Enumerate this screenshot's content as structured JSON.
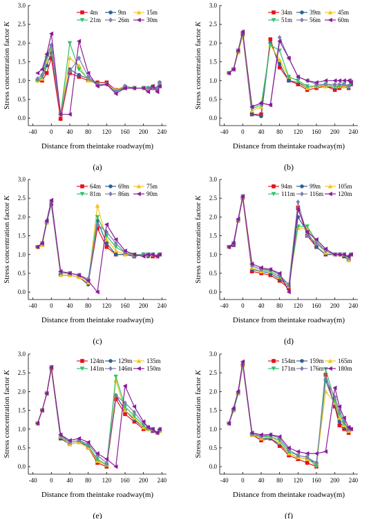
{
  "x_categories": [
    -30,
    -20,
    -10,
    0,
    20,
    40,
    60,
    80,
    100,
    120,
    140,
    160,
    180,
    200,
    210,
    220,
    230,
    235
  ],
  "chart_data": [
    {
      "type": "line",
      "panel_label": "(a)",
      "xlabel": "Distance from theintake roadway(m)",
      "ylabel": "Stress concentration factor K",
      "xlim": [
        -50,
        250
      ],
      "ylim": [
        -0.2,
        3.0
      ],
      "xticks": [
        -40,
        0,
        40,
        80,
        120,
        160,
        200,
        240
      ],
      "yticks": [
        0.0,
        0.5,
        1.0,
        1.5,
        2.0,
        2.5,
        3.0
      ],
      "series": [
        {
          "name": "4m",
          "color": "#e8101a",
          "marker": "square",
          "values": [
            1.0,
            1.0,
            1.2,
            1.6,
            -0.02,
            1.2,
            1.1,
            1.0,
            0.95,
            0.95,
            0.75,
            0.8,
            0.8,
            0.8,
            0.75,
            0.8,
            0.75,
            0.85
          ]
        },
        {
          "name": "9m",
          "color": "#2f5f9a",
          "marker": "circle",
          "values": [
            1.0,
            1.05,
            1.4,
            1.75,
            0.1,
            1.3,
            1.15,
            1.05,
            0.9,
            0.9,
            0.75,
            0.85,
            0.8,
            0.8,
            0.8,
            0.85,
            0.8,
            0.95
          ]
        },
        {
          "name": "15m",
          "color": "#f5c518",
          "marker": "triangle",
          "values": [
            1.0,
            1.05,
            1.55,
            1.85,
            0.1,
            1.6,
            1.4,
            1.0,
            0.9,
            0.9,
            0.75,
            0.85,
            0.8,
            0.8,
            0.75,
            0.85,
            0.75,
            0.9
          ]
        },
        {
          "name": "21m",
          "color": "#2ec46a",
          "marker": "triangle-down",
          "values": [
            1.0,
            1.1,
            1.6,
            1.9,
            0.1,
            2.0,
            1.3,
            1.05,
            0.9,
            0.9,
            0.7,
            0.8,
            0.8,
            0.8,
            0.8,
            0.8,
            0.75,
            0.9
          ]
        },
        {
          "name": "26m",
          "color": "#7a7fb0",
          "marker": "diamond",
          "values": [
            1.05,
            1.15,
            1.7,
            1.95,
            0.1,
            1.25,
            1.6,
            1.1,
            0.9,
            0.9,
            0.7,
            0.85,
            0.8,
            0.8,
            0.8,
            0.8,
            0.8,
            0.95
          ]
        },
        {
          "name": "30m",
          "color": "#8b1a9a",
          "marker": "triangle-left",
          "values": [
            1.2,
            1.3,
            1.7,
            2.25,
            0.1,
            0.1,
            2.05,
            1.2,
            0.85,
            0.9,
            0.65,
            0.8,
            0.8,
            0.8,
            0.7,
            0.85,
            0.7,
            0.85
          ]
        }
      ]
    },
    {
      "type": "line",
      "panel_label": "(b)",
      "xlabel": "Distance from theintake roadway(m)",
      "ylabel": "Stress concentration factor K",
      "xlim": [
        -50,
        250
      ],
      "ylim": [
        -0.2,
        3.0
      ],
      "xticks": [
        -40,
        0,
        40,
        80,
        120,
        160,
        200,
        240
      ],
      "yticks": [
        0.0,
        0.5,
        1.0,
        1.5,
        2.0,
        2.5,
        3.0
      ],
      "series": [
        {
          "name": "34m",
          "color": "#e8101a",
          "marker": "square",
          "values": [
            1.2,
            1.3,
            1.8,
            2.25,
            0.1,
            0.1,
            2.1,
            1.35,
            1.0,
            0.9,
            0.75,
            0.8,
            0.85,
            0.75,
            0.8,
            0.85,
            0.8,
            0.9
          ]
        },
        {
          "name": "39m",
          "color": "#2f5f9a",
          "marker": "circle",
          "values": [
            1.2,
            1.3,
            1.75,
            2.2,
            0.1,
            0.05,
            2.0,
            1.45,
            1.0,
            0.95,
            0.8,
            0.85,
            0.85,
            0.8,
            0.85,
            0.85,
            0.8,
            0.9
          ]
        },
        {
          "name": "45m",
          "color": "#f5c518",
          "marker": "triangle",
          "values": [
            1.2,
            1.3,
            1.75,
            2.2,
            0.2,
            0.3,
            1.95,
            1.55,
            1.1,
            1.0,
            0.8,
            0.85,
            0.85,
            0.85,
            0.85,
            0.85,
            0.85,
            0.95
          ]
        },
        {
          "name": "51m",
          "color": "#2ec46a",
          "marker": "triangle-down",
          "values": [
            1.2,
            1.3,
            1.8,
            2.25,
            0.25,
            0.35,
            1.95,
            1.8,
            1.1,
            1.0,
            0.85,
            0.85,
            0.9,
            0.85,
            0.85,
            0.9,
            0.85,
            0.95
          ]
        },
        {
          "name": "56m",
          "color": "#7a7fb0",
          "marker": "diamond",
          "values": [
            1.2,
            1.3,
            1.8,
            2.3,
            0.3,
            0.4,
            0.35,
            2.15,
            1.6,
            1.1,
            1.0,
            0.9,
            0.9,
            0.9,
            0.9,
            0.9,
            0.85,
            1.0
          ]
        },
        {
          "name": "60m",
          "color": "#8b1a9a",
          "marker": "triangle-left",
          "values": [
            1.2,
            1.3,
            1.8,
            2.3,
            0.3,
            0.4,
            0.35,
            2.05,
            1.6,
            1.1,
            1.0,
            0.95,
            1.0,
            1.0,
            1.0,
            1.0,
            1.0,
            0.95
          ]
        }
      ]
    },
    {
      "type": "line",
      "panel_label": "(c)",
      "xlabel": "Distance from theintake roadway(m)",
      "ylabel": "Stress concentration factor K",
      "xlim": [
        -50,
        250
      ],
      "ylim": [
        -0.2,
        3.0
      ],
      "xticks": [
        -40,
        0,
        40,
        80,
        120,
        160,
        200,
        240
      ],
      "yticks": [
        0.0,
        0.5,
        1.0,
        1.5,
        2.0,
        2.5,
        3.0
      ],
      "series": [
        {
          "name": "64m",
          "color": "#e8101a",
          "marker": "square",
          "values": [
            1.2,
            1.25,
            1.85,
            2.35,
            0.45,
            0.45,
            0.4,
            0.25,
            1.7,
            1.2,
            1.0,
            1.0,
            0.95,
            1.0,
            1.0,
            0.95,
            0.95,
            1.0
          ]
        },
        {
          "name": "69m",
          "color": "#2f5f9a",
          "marker": "circle",
          "values": [
            1.2,
            1.25,
            1.85,
            2.35,
            0.45,
            0.45,
            0.4,
            0.2,
            1.9,
            1.3,
            1.0,
            1.0,
            0.95,
            1.0,
            0.95,
            1.0,
            0.95,
            1.0
          ]
        },
        {
          "name": "75m",
          "color": "#f5c518",
          "marker": "triangle",
          "values": [
            1.2,
            1.25,
            1.85,
            2.4,
            0.45,
            0.45,
            0.4,
            0.25,
            2.3,
            1.4,
            1.1,
            1.0,
            1.0,
            1.0,
            1.0,
            1.0,
            0.95,
            1.0
          ]
        },
        {
          "name": "81m",
          "color": "#2ec46a",
          "marker": "triangle-down",
          "values": [
            1.2,
            1.3,
            1.85,
            2.4,
            0.5,
            0.5,
            0.45,
            0.3,
            2.0,
            1.5,
            1.2,
            1.05,
            1.0,
            1.0,
            1.0,
            1.0,
            0.95,
            1.0
          ]
        },
        {
          "name": "86m",
          "color": "#7a7fb0",
          "marker": "diamond",
          "values": [
            1.2,
            1.3,
            1.9,
            2.4,
            0.55,
            0.5,
            0.45,
            0.35,
            1.8,
            1.6,
            1.3,
            1.05,
            0.95,
            1.0,
            1.0,
            1.0,
            0.95,
            1.0
          ]
        },
        {
          "name": "90m",
          "color": "#8b1a9a",
          "marker": "triangle-left",
          "values": [
            1.2,
            1.3,
            1.9,
            2.45,
            0.55,
            0.5,
            0.45,
            0.3,
            0.0,
            1.8,
            1.4,
            1.1,
            1.0,
            0.95,
            1.0,
            1.0,
            0.95,
            1.0
          ]
        }
      ]
    },
    {
      "type": "line",
      "panel_label": "(d)",
      "xlabel": "Distance from theintake roadway(m)",
      "ylabel": "Stress concentration factor K",
      "xlim": [
        -50,
        250
      ],
      "ylim": [
        -0.2,
        3.0
      ],
      "xticks": [
        -40,
        0,
        40,
        80,
        120,
        160,
        200,
        240
      ],
      "yticks": [
        0.0,
        0.5,
        1.0,
        1.5,
        2.0,
        2.5,
        3.0
      ],
      "series": [
        {
          "name": "94m",
          "color": "#e8101a",
          "marker": "square",
          "values": [
            1.2,
            1.25,
            1.9,
            2.5,
            0.55,
            0.5,
            0.45,
            0.3,
            0.1,
            2.25,
            1.5,
            1.2,
            1.0,
            1.0,
            1.0,
            0.95,
            0.85,
            1.0
          ]
        },
        {
          "name": "99m",
          "color": "#2f5f9a",
          "marker": "circle",
          "values": [
            1.2,
            1.25,
            1.9,
            2.5,
            0.6,
            0.55,
            0.5,
            0.35,
            0.15,
            2.0,
            1.6,
            1.2,
            1.0,
            1.0,
            1.0,
            0.95,
            0.85,
            1.0
          ]
        },
        {
          "name": "105m",
          "color": "#f5c518",
          "marker": "triangle",
          "values": [
            1.2,
            1.3,
            1.9,
            2.5,
            0.65,
            0.55,
            0.55,
            0.4,
            0.15,
            1.7,
            1.7,
            1.3,
            1.05,
            1.0,
            1.0,
            1.0,
            0.85,
            1.0
          ]
        },
        {
          "name": "111m",
          "color": "#2ec46a",
          "marker": "triangle-down",
          "values": [
            1.2,
            1.3,
            1.9,
            2.55,
            0.7,
            0.6,
            0.55,
            0.4,
            0.2,
            1.75,
            1.75,
            1.35,
            1.1,
            1.0,
            1.0,
            1.0,
            0.9,
            1.0
          ]
        },
        {
          "name": "116m",
          "color": "#7a7fb0",
          "marker": "diamond",
          "values": [
            1.2,
            1.3,
            1.9,
            2.55,
            0.7,
            0.6,
            0.6,
            0.45,
            0.2,
            2.4,
            1.5,
            1.3,
            1.1,
            1.0,
            1.0,
            1.0,
            0.95,
            1.0
          ]
        },
        {
          "name": "120m",
          "color": "#8b1a9a",
          "marker": "triangle-left",
          "values": [
            1.2,
            1.3,
            1.95,
            2.55,
            0.75,
            0.65,
            0.6,
            0.5,
            0.0,
            2.2,
            1.6,
            1.4,
            1.15,
            1.0,
            1.0,
            1.0,
            0.95,
            1.0
          ]
        }
      ]
    },
    {
      "type": "line",
      "panel_label": "(e)",
      "xlabel": "Distance from theintake roadway(m)",
      "ylabel": "Stress concentration factor K",
      "xlim": [
        -50,
        250
      ],
      "ylim": [
        -0.2,
        3.0
      ],
      "xticks": [
        -40,
        0,
        40,
        80,
        120,
        160,
        200,
        240
      ],
      "yticks": [
        0.0,
        0.5,
        1.0,
        1.5,
        2.0,
        2.5,
        3.0
      ],
      "series": [
        {
          "name": "124m",
          "color": "#e8101a",
          "marker": "square",
          "values": [
            1.15,
            1.5,
            1.95,
            2.6,
            0.75,
            0.6,
            0.65,
            0.5,
            0.1,
            0.0,
            1.8,
            1.4,
            1.2,
            1.0,
            1.0,
            0.95,
            0.9,
            0.95
          ]
        },
        {
          "name": "129m",
          "color": "#2f5f9a",
          "marker": "circle",
          "values": [
            1.15,
            1.5,
            1.95,
            2.6,
            0.75,
            0.6,
            0.65,
            0.55,
            0.15,
            0.05,
            1.9,
            1.5,
            1.25,
            1.05,
            1.0,
            0.95,
            0.9,
            0.95
          ]
        },
        {
          "name": "135m",
          "color": "#f5c518",
          "marker": "triangle",
          "values": [
            1.15,
            1.5,
            1.95,
            2.6,
            0.8,
            0.6,
            0.65,
            0.5,
            0.15,
            0.05,
            2.3,
            1.5,
            1.3,
            1.05,
            1.0,
            1.0,
            0.9,
            0.95
          ]
        },
        {
          "name": "141m",
          "color": "#2ec46a",
          "marker": "triangle-down",
          "values": [
            1.15,
            1.5,
            1.95,
            2.65,
            0.8,
            0.65,
            0.7,
            0.55,
            0.2,
            0.05,
            2.4,
            1.6,
            1.35,
            1.1,
            1.0,
            1.0,
            0.9,
            0.95
          ]
        },
        {
          "name": "146m",
          "color": "#7a7fb0",
          "marker": "diamond",
          "values": [
            1.15,
            1.5,
            1.95,
            2.65,
            0.85,
            0.65,
            0.7,
            0.6,
            0.3,
            0.1,
            1.9,
            1.7,
            1.45,
            1.15,
            1.05,
            1.0,
            0.9,
            1.0
          ]
        },
        {
          "name": "150m",
          "color": "#8b1a9a",
          "marker": "triangle-left",
          "values": [
            1.15,
            1.5,
            1.95,
            2.65,
            0.85,
            0.7,
            0.75,
            0.65,
            0.35,
            0.2,
            0.0,
            2.15,
            1.6,
            1.2,
            1.05,
            1.0,
            0.9,
            1.0
          ]
        }
      ]
    },
    {
      "type": "line",
      "panel_label": "(f)",
      "xlabel": "Distance from theintake roadway(m)",
      "ylabel": "Stress concentration factor K",
      "xlim": [
        -50,
        250
      ],
      "ylim": [
        -0.2,
        3.0
      ],
      "xticks": [
        -40,
        0,
        40,
        80,
        120,
        160,
        200,
        240
      ],
      "yticks": [
        0.0,
        0.5,
        1.0,
        1.5,
        2.0,
        2.5,
        3.0
      ],
      "series": [
        {
          "name": "154m",
          "color": "#e8101a",
          "marker": "square",
          "values": [
            1.15,
            1.5,
            1.95,
            2.7,
            0.85,
            0.7,
            0.75,
            0.55,
            0.3,
            0.2,
            0.1,
            0.0,
            2.45,
            1.6,
            1.1,
            1.0,
            0.9,
            1.0
          ]
        },
        {
          "name": "159m",
          "color": "#2f5f9a",
          "marker": "circle",
          "values": [
            1.15,
            1.5,
            1.95,
            2.7,
            0.85,
            0.75,
            0.75,
            0.6,
            0.35,
            0.25,
            0.2,
            0.1,
            2.3,
            1.65,
            1.2,
            1.05,
            0.95,
            1.0
          ]
        },
        {
          "name": "165m",
          "color": "#f5c518",
          "marker": "triangle",
          "values": [
            1.15,
            1.5,
            1.95,
            2.7,
            0.85,
            0.75,
            0.8,
            0.65,
            0.35,
            0.25,
            0.2,
            0.05,
            2.0,
            1.7,
            1.3,
            1.1,
            0.95,
            1.0
          ]
        },
        {
          "name": "171m",
          "color": "#2ec46a",
          "marker": "triangle-down",
          "values": [
            1.15,
            1.5,
            1.95,
            2.75,
            0.85,
            0.8,
            0.8,
            0.7,
            0.4,
            0.3,
            0.25,
            0.0,
            2.6,
            1.75,
            1.4,
            1.15,
            1.0,
            1.0
          ]
        },
        {
          "name": "176m",
          "color": "#7a7fb0",
          "marker": "diamond",
          "values": [
            1.15,
            1.55,
            2.0,
            2.75,
            0.9,
            0.8,
            0.85,
            0.75,
            0.45,
            0.3,
            0.25,
            0.1,
            2.35,
            1.85,
            1.5,
            1.2,
            1.0,
            1.0
          ]
        },
        {
          "name": "180m",
          "color": "#8b1a9a",
          "marker": "triangle-left",
          "values": [
            1.15,
            1.55,
            2.0,
            2.8,
            0.9,
            0.85,
            0.85,
            0.8,
            0.5,
            0.4,
            0.35,
            0.35,
            0.4,
            2.1,
            1.6,
            1.3,
            1.05,
            1.0
          ]
        }
      ]
    }
  ]
}
